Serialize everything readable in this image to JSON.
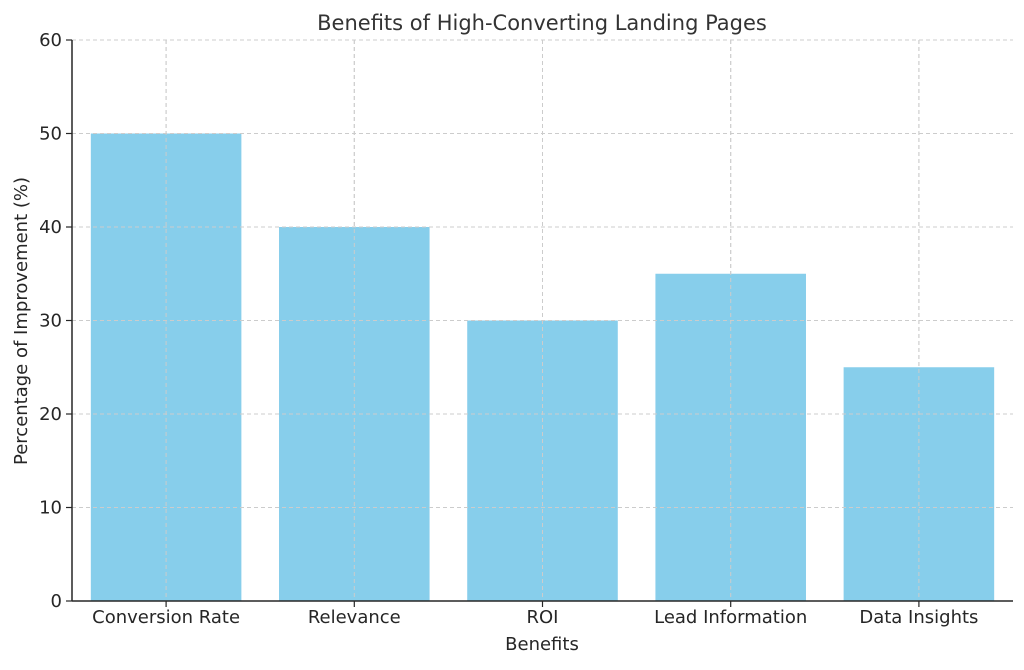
{
  "chart_data": {
    "type": "bar",
    "title": "Benefits of High-Converting Landing Pages",
    "xlabel": "Benefits",
    "ylabel": "Percentage of Improvement (%)",
    "categories": [
      "Conversion Rate",
      "Relevance",
      "ROI",
      "Lead Information",
      "Data Insights"
    ],
    "values": [
      50,
      40,
      30,
      35,
      25
    ],
    "ylim": [
      0,
      60
    ],
    "yticks": [
      0,
      10,
      20,
      30,
      40,
      50,
      60
    ],
    "grid": true,
    "bar_color": "#87CEEB"
  }
}
